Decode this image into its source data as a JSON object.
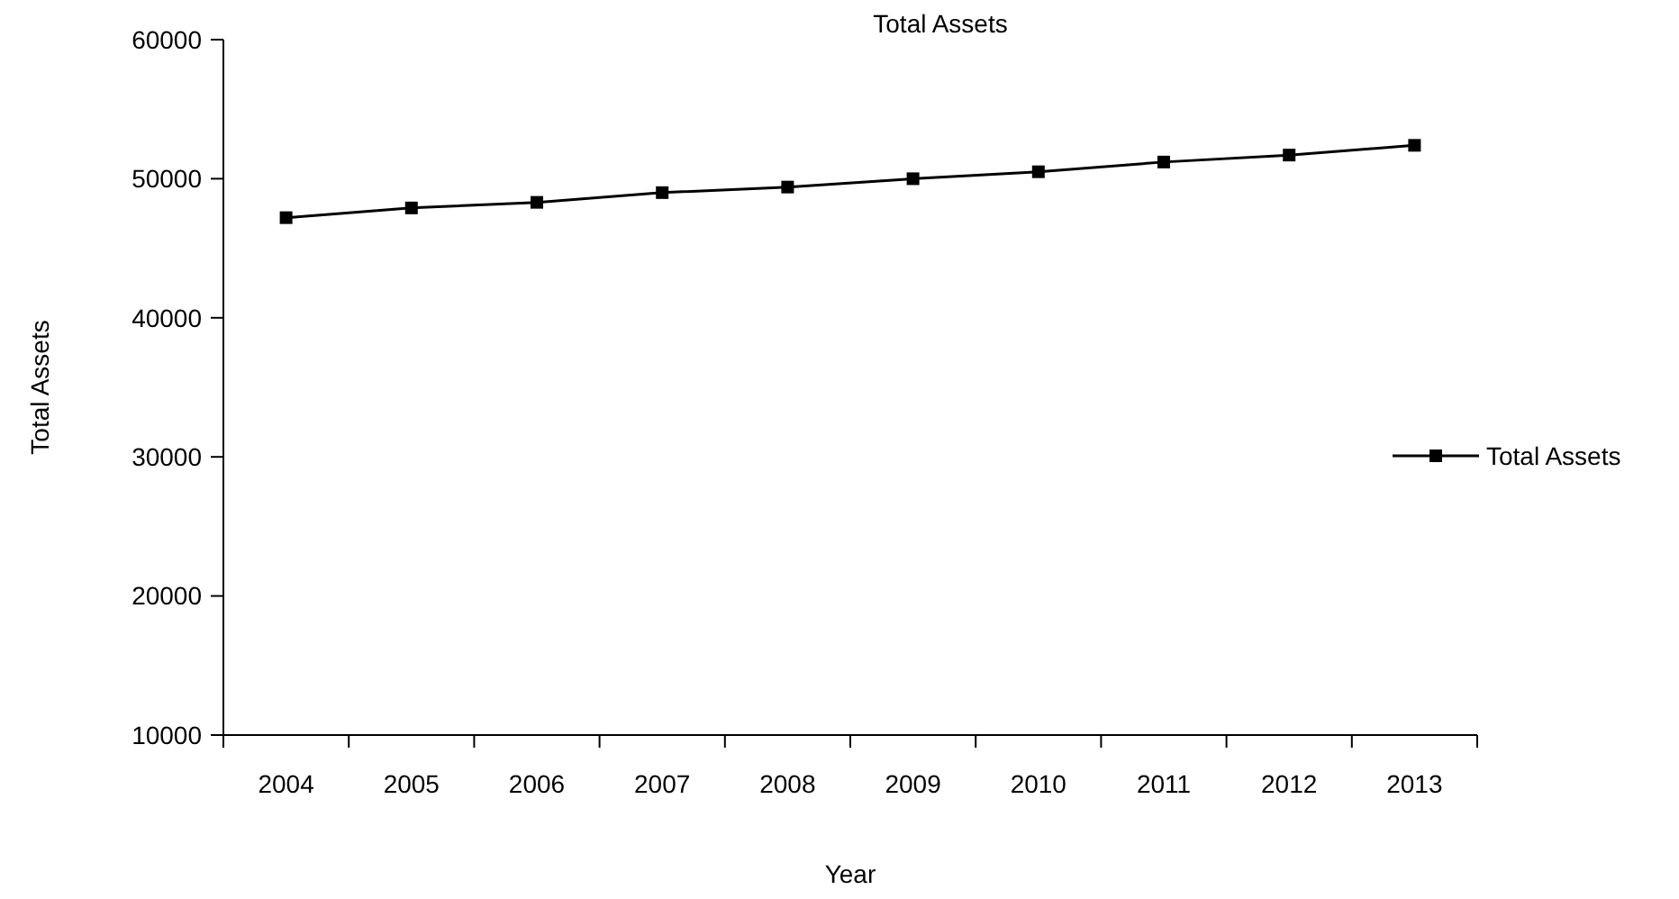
{
  "chart_data": {
    "type": "line",
    "title": "Total Assets",
    "xlabel": "Year",
    "ylabel": "Total Assets",
    "categories": [
      "2004",
      "2005",
      "2006",
      "2007",
      "2008",
      "2009",
      "2010",
      "2011",
      "2012",
      "2013"
    ],
    "series": [
      {
        "name": "Total Assets",
        "color": "#000000",
        "values": [
          47200,
          47900,
          48300,
          49000,
          49400,
          50000,
          50500,
          51200,
          51700,
          52400
        ]
      }
    ],
    "ylim": [
      10000,
      60000
    ],
    "yticks": [
      10000,
      20000,
      30000,
      40000,
      50000,
      60000
    ],
    "grid": false,
    "legend": "right",
    "marker": "square",
    "line_style": "solid"
  }
}
